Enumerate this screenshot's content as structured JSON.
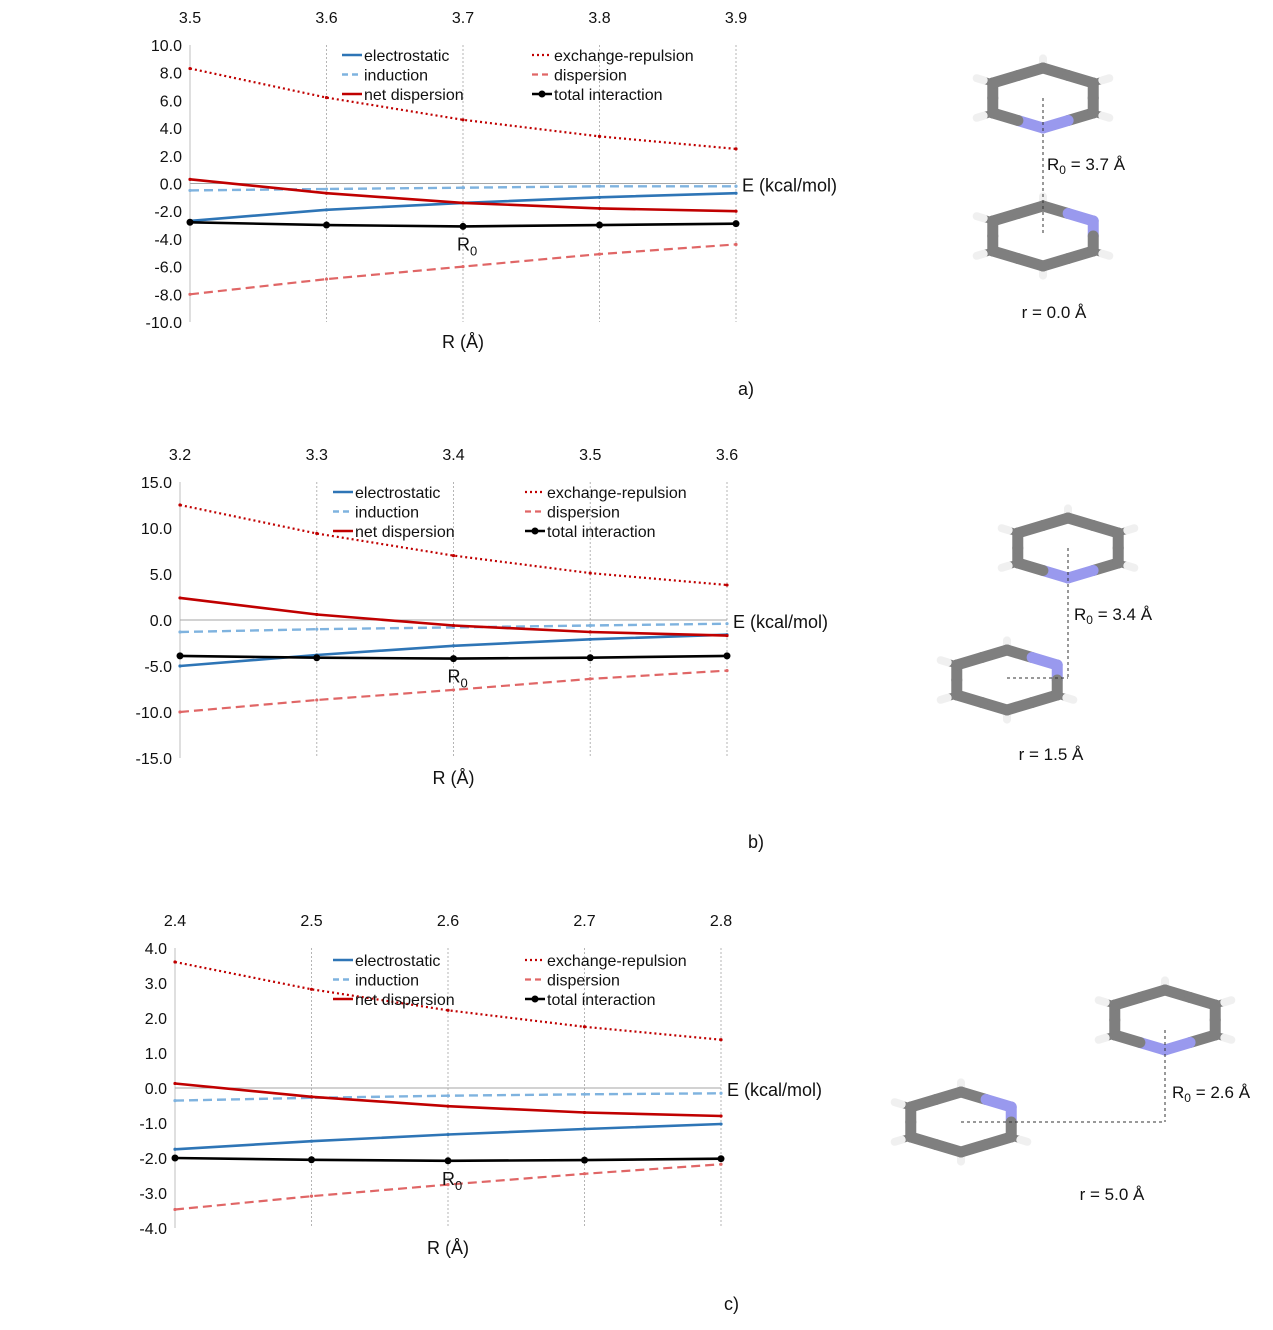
{
  "colors": {
    "electrostatic": "#2e75b6",
    "induction": "#7fb3df",
    "exchange_repulsion": "#c00000",
    "dispersion": "#e06666",
    "net_dispersion": "#c00000",
    "total_interaction": "#000000",
    "carbon": "#7f7f7f",
    "nitrogen": "#9999ee",
    "hydrogen": "#f0f0f0"
  },
  "chart_data": [
    {
      "type": "line",
      "panel_label": "a)",
      "xlabel": "R (Å)",
      "ylabel": "E (kcal/mol)",
      "xlim": [
        3.5,
        3.9
      ],
      "ylim": [
        -10,
        10
      ],
      "x_ticks": [
        "3.5",
        "3.6",
        "3.7",
        "3.8",
        "3.9"
      ],
      "y_ticks": [
        "10.0",
        "8.0",
        "6.0",
        "4.0",
        "2.0",
        "0.0",
        "-2.0",
        "-4.0",
        "-6.0",
        "-8.0",
        "-10.0"
      ],
      "y_tick_values": [
        10,
        8,
        6,
        4,
        2,
        0,
        -2,
        -4,
        -6,
        -8,
        -10
      ],
      "x_axis_position": "top",
      "grid": true,
      "legend": "top",
      "r0_label": "R0",
      "r0_x": 3.7,
      "x": [
        3.5,
        3.6,
        3.7,
        3.8,
        3.9
      ],
      "series": [
        {
          "key": "electrostatic",
          "name": "electrostatic",
          "values": [
            -2.7,
            -1.9,
            -1.4,
            -1.0,
            -0.7
          ]
        },
        {
          "key": "induction",
          "name": "induction",
          "values": [
            -0.5,
            -0.4,
            -0.3,
            -0.2,
            -0.2
          ]
        },
        {
          "key": "net_dispersion",
          "name": "net dispersion",
          "values": [
            0.3,
            -0.7,
            -1.4,
            -1.8,
            -2.0
          ]
        },
        {
          "key": "exchange_repulsion",
          "name": "exchange-repulsion",
          "values": [
            8.3,
            6.2,
            4.6,
            3.4,
            2.5
          ]
        },
        {
          "key": "dispersion",
          "name": "dispersion",
          "values": [
            -8.0,
            -6.9,
            -6.0,
            -5.1,
            -4.4
          ]
        },
        {
          "key": "total_interaction",
          "name": "total interaction",
          "values": [
            -2.8,
            -3.0,
            -3.1,
            -3.0,
            -2.9
          ]
        }
      ],
      "molecule": {
        "r0_text": "R0 = 3.7 Å",
        "r_text": "r = 0.0 Å"
      }
    },
    {
      "type": "line",
      "panel_label": "b)",
      "xlabel": "R (Å)",
      "ylabel": "E (kcal/mol)",
      "xlim": [
        3.2,
        3.6
      ],
      "ylim": [
        -15,
        15
      ],
      "x_ticks": [
        "3.2",
        "3.3",
        "3.4",
        "3.5",
        "3.6"
      ],
      "y_ticks": [
        "15.0",
        "10.0",
        "5.0",
        "0.0",
        "-5.0",
        "-10.0",
        "-15.0"
      ],
      "y_tick_values": [
        15,
        10,
        5,
        0,
        -5,
        -10,
        -15
      ],
      "x_axis_position": "top",
      "grid": true,
      "legend": "top",
      "r0_label": "R0",
      "r0_x": 3.4,
      "x": [
        3.2,
        3.3,
        3.4,
        3.5,
        3.6
      ],
      "series": [
        {
          "key": "electrostatic",
          "name": "electrostatic",
          "values": [
            -5.0,
            -3.8,
            -2.8,
            -2.1,
            -1.6
          ]
        },
        {
          "key": "induction",
          "name": "induction",
          "values": [
            -1.3,
            -1.0,
            -0.8,
            -0.6,
            -0.4
          ]
        },
        {
          "key": "net_dispersion",
          "name": "net dispersion",
          "values": [
            2.4,
            0.6,
            -0.6,
            -1.3,
            -1.7
          ]
        },
        {
          "key": "exchange_repulsion",
          "name": "exchange-repulsion",
          "values": [
            12.5,
            9.4,
            7.0,
            5.1,
            3.8
          ]
        },
        {
          "key": "dispersion",
          "name": "dispersion",
          "values": [
            -10.0,
            -8.7,
            -7.6,
            -6.4,
            -5.5
          ]
        },
        {
          "key": "total_interaction",
          "name": "total interaction",
          "values": [
            -3.9,
            -4.1,
            -4.2,
            -4.1,
            -3.9
          ]
        }
      ],
      "molecule": {
        "r0_text": "R0 = 3.4 Å",
        "r_text": "r = 1.5 Å"
      }
    },
    {
      "type": "line",
      "panel_label": "c)",
      "xlabel": "R (Å)",
      "ylabel": "E (kcal/mol)",
      "xlim": [
        2.4,
        2.8
      ],
      "ylim": [
        -4,
        4
      ],
      "x_ticks": [
        "2.4",
        "2.5",
        "2.6",
        "2.7",
        "2.8"
      ],
      "y_ticks": [
        "4.0",
        "3.0",
        "2.0",
        "1.0",
        "0.0",
        "-1.0",
        "-2.0",
        "-3.0",
        "-4.0"
      ],
      "y_tick_values": [
        4,
        3,
        2,
        1,
        0,
        -1,
        -2,
        -3,
        -4
      ],
      "x_axis_position": "top",
      "grid": true,
      "legend": "top",
      "r0_label": "R0",
      "r0_x": 2.6,
      "x": [
        2.4,
        2.5,
        2.6,
        2.7,
        2.8
      ],
      "series": [
        {
          "key": "electrostatic",
          "name": "electrostatic",
          "values": [
            -1.75,
            -1.52,
            -1.33,
            -1.17,
            -1.03
          ]
        },
        {
          "key": "induction",
          "name": "induction",
          "values": [
            -0.36,
            -0.28,
            -0.22,
            -0.18,
            -0.15
          ]
        },
        {
          "key": "net_dispersion",
          "name": "net dispersion",
          "values": [
            0.13,
            -0.25,
            -0.52,
            -0.7,
            -0.8
          ]
        },
        {
          "key": "exchange_repulsion",
          "name": "exchange-repulsion",
          "values": [
            3.6,
            2.82,
            2.22,
            1.75,
            1.38
          ]
        },
        {
          "key": "dispersion",
          "name": "dispersion",
          "values": [
            -3.47,
            -3.09,
            -2.76,
            -2.45,
            -2.18
          ]
        },
        {
          "key": "total_interaction",
          "name": "total interaction",
          "values": [
            -2.0,
            -2.05,
            -2.08,
            -2.06,
            -2.02
          ]
        }
      ],
      "molecule": {
        "r0_text": "R0 = 2.6 Å",
        "r_text": "r = 5.0 Å"
      }
    }
  ]
}
